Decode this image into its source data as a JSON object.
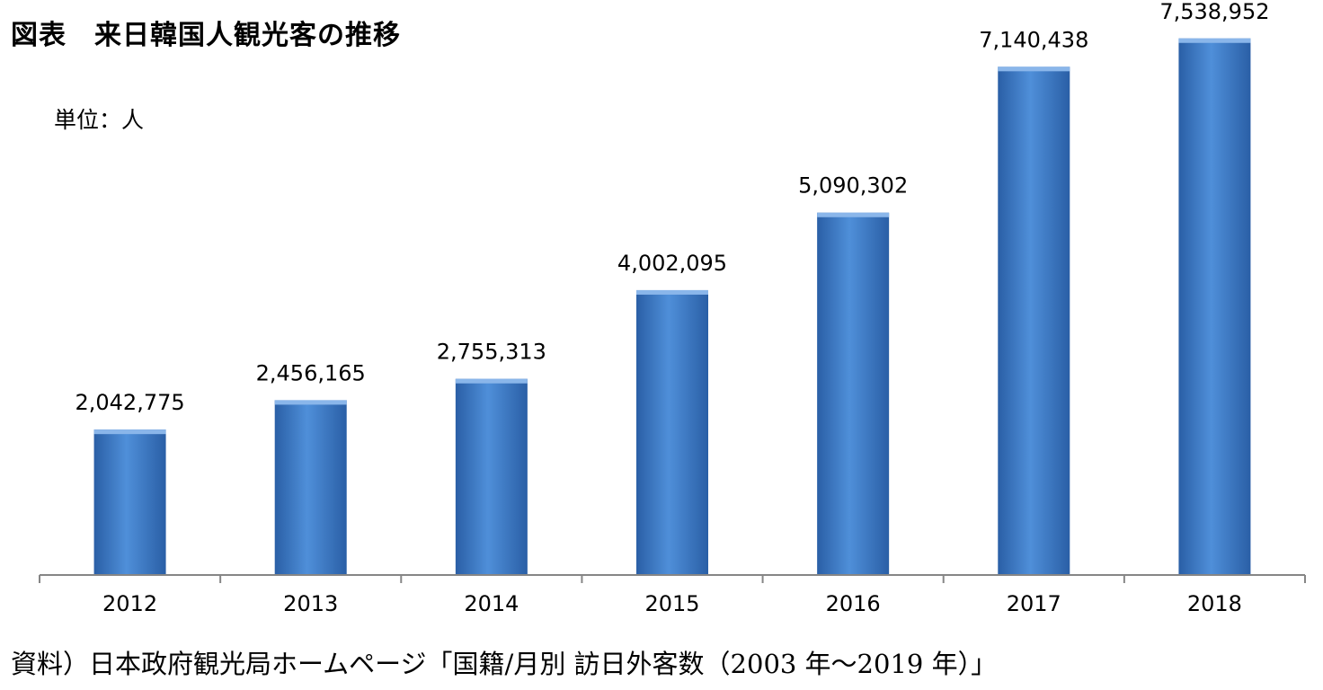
{
  "title": "図表　来日韓国人観光客の推移",
  "unit_label": "単位：人",
  "source_note": "資料）日本政府観光局ホームページ「国籍/月別 訪日外客数（2003 年～2019 年）」",
  "colors": {
    "bar_light": "#4f8fd9",
    "bar_dark": "#2a5fa6",
    "axis": "#868686"
  },
  "chart_data": {
    "type": "bar",
    "title": "図表　来日韓国人観光客の推移",
    "ylabel": "単位：人",
    "xlabel": "",
    "categories": [
      "2012",
      "2013",
      "2014",
      "2015",
      "2016",
      "2017",
      "2018"
    ],
    "values": [
      2042775,
      2456165,
      2755313,
      4002095,
      5090302,
      7140438,
      7538952
    ],
    "value_labels": [
      "2,042,775",
      "2,456,165",
      "2,755,313",
      "4,002,095",
      "5,090,302",
      "7,140,438",
      "7,538,952"
    ],
    "ylim": [
      0,
      7700000
    ],
    "grid": false,
    "legend": "none"
  }
}
